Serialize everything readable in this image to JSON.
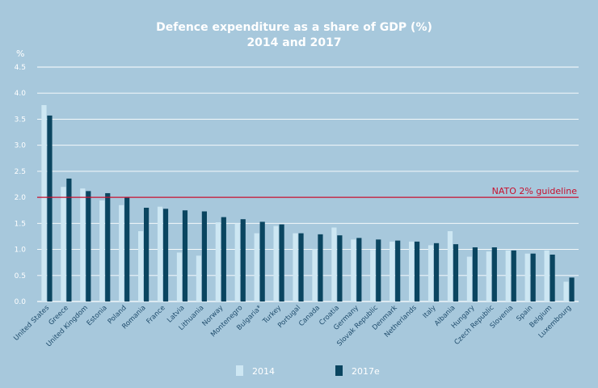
{
  "chart_data": {
    "type": "bar",
    "title": "Defence expenditure as a share of GDP (%)",
    "subtitle": "2014 and 2017",
    "ylabel": "%",
    "ylim": [
      0,
      4.5
    ],
    "yticks": [
      "0.0",
      "0.5",
      "1.0",
      "1.5",
      "2.0",
      "2.5",
      "3.0",
      "3.5",
      "4.0",
      "4.5"
    ],
    "grid": true,
    "legend": "bottom-center",
    "categories": [
      "United States",
      "Greece",
      "United Kingdom",
      "Estonia",
      "Poland",
      "Romania",
      "France",
      "Latvia",
      "Lithuania",
      "Norway",
      "Montenegro",
      "Bulgaria*",
      "Turkey",
      "Portugal",
      "Canada",
      "Croatia",
      "Germany",
      "Slovak Republic",
      "Denmark",
      "Netherlands",
      "Italy",
      "Albania",
      "Hungary",
      "Czech Republic",
      "Slovenia",
      "Spain",
      "Belgium",
      "Luxembourg"
    ],
    "series": [
      {
        "name": "2014",
        "color": "#cde7f3",
        "values": [
          3.77,
          2.2,
          2.17,
          1.94,
          1.85,
          1.35,
          1.82,
          0.94,
          0.88,
          1.52,
          1.5,
          1.31,
          1.45,
          1.31,
          1.01,
          1.42,
          1.19,
          0.99,
          1.15,
          1.15,
          1.08,
          1.35,
          0.86,
          0.96,
          0.98,
          0.92,
          0.98,
          0.38
        ]
      },
      {
        "name": "2017e",
        "color": "#0a4560",
        "values": [
          3.57,
          2.36,
          2.12,
          2.08,
          2.0,
          1.8,
          1.78,
          1.75,
          1.73,
          1.62,
          1.58,
          1.53,
          1.48,
          1.31,
          1.29,
          1.27,
          1.22,
          1.19,
          1.17,
          1.15,
          1.12,
          1.1,
          1.04,
          1.04,
          0.98,
          0.92,
          0.9,
          0.46
        ]
      }
    ],
    "reference_line": {
      "value": 2.0,
      "label": "NATO 2% guideline",
      "color": "#c8102e"
    }
  }
}
